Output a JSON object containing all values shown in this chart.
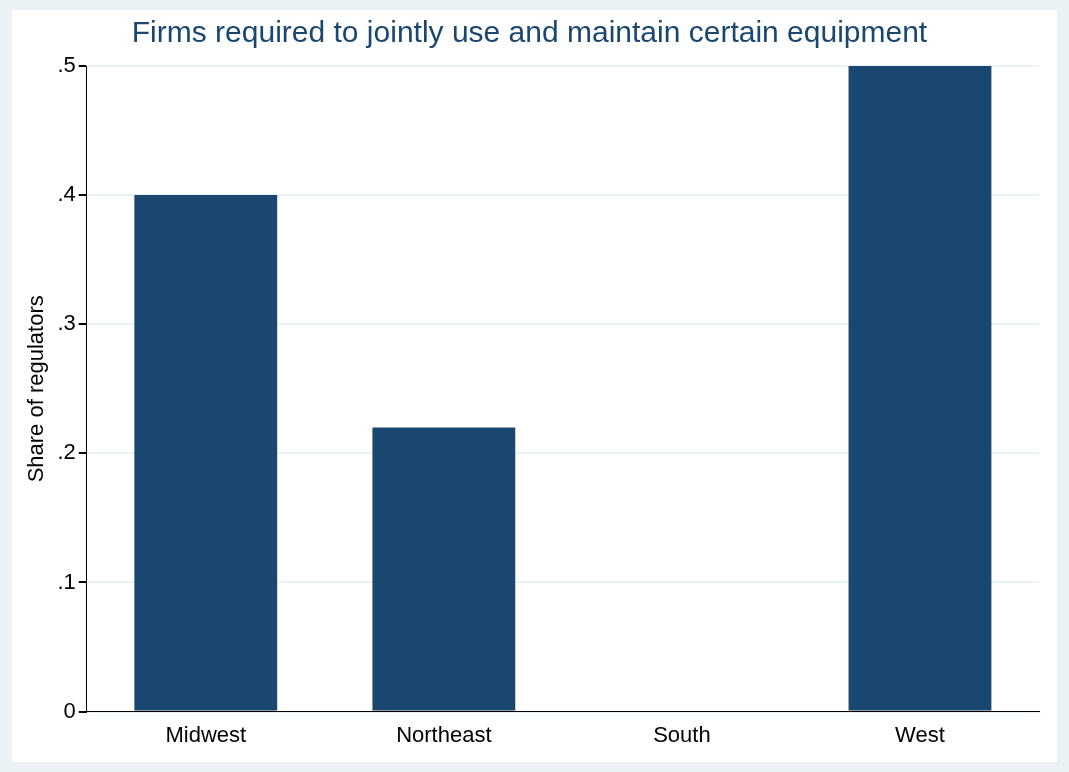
{
  "chart_data": {
    "type": "bar",
    "title": "Firms required to jointly use and maintain certain equipment",
    "ylabel": "Share of regulators",
    "categories": [
      "Midwest",
      "Northeast",
      "South",
      "West"
    ],
    "values": [
      0.4,
      0.22,
      0,
      0.5
    ],
    "color": "#1a476f",
    "ylim": [
      0,
      0.5
    ],
    "yticks": [
      {
        "value": 0,
        "label": "0"
      },
      {
        "value": 0.1,
        "label": ".1"
      },
      {
        "value": 0.2,
        "label": ".2"
      },
      {
        "value": 0.3,
        "label": ".3"
      },
      {
        "value": 0.4,
        "label": ".4"
      },
      {
        "value": 0.5,
        "label": ".5"
      }
    ],
    "grid": "y",
    "legend": false
  }
}
